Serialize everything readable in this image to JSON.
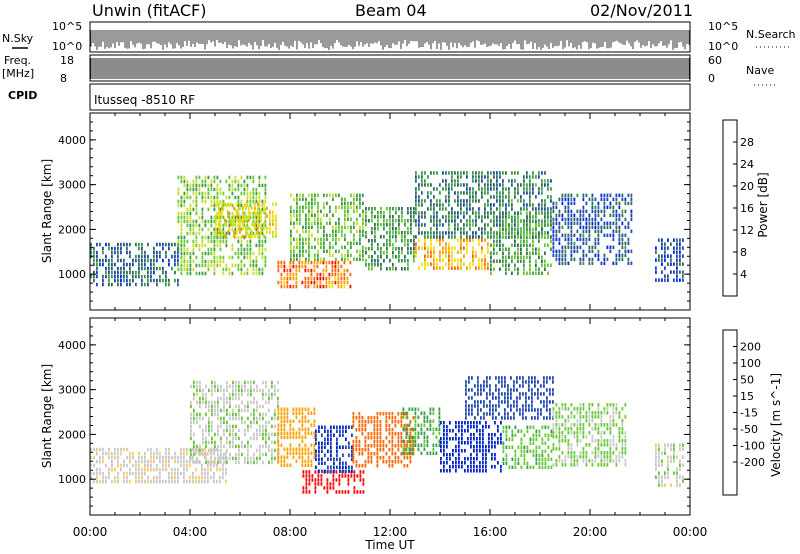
{
  "header": {
    "site": "Unwin (fitACF)",
    "beam": "Beam 04",
    "date": "02/Nov/2011"
  },
  "status_panel": {
    "nsky_label": "N.Sky",
    "nsky_ticks": [
      "10^5",
      "10^0"
    ],
    "nsearch_label": "N.Search",
    "freq_label_1": "Freq.",
    "freq_label_2": "[MHz]",
    "freq_ticks": [
      "18",
      "8"
    ],
    "nave_label": "Nave",
    "nave_ticks": [
      "60",
      "0"
    ],
    "cpid_label": "CPID",
    "cpid_value": "Itusseq -8510 RF"
  },
  "colors": {
    "power": [
      "#0022ff",
      "#1e46b4",
      "#2d6e5a",
      "#3c9a46",
      "#64c832",
      "#c8dc28",
      "#ffdc00",
      "#ffa000",
      "#ff6400",
      "#ff0000"
    ],
    "velocity": [
      "#ff0000",
      "#ff6400",
      "#ffa000",
      "#ffc864",
      "#c8c8c8",
      "#c8c8c8",
      "#64c832",
      "#32a046",
      "#1e46b4",
      "#0022cc"
    ]
  },
  "chart_data": [
    {
      "type": "heatmap",
      "panel": "power",
      "xlabel": "",
      "ylabel": "Slant Range [km]",
      "x_unit": "hours UT",
      "xlim": [
        0,
        24
      ],
      "ylim": [
        200,
        4600
      ],
      "yticks": [
        "1000",
        "2000",
        "3000",
        "4000"
      ],
      "colorbar_label": "Power [dB]",
      "colorbar_ticks": [
        "4",
        "8",
        "12",
        "16",
        "20",
        "24",
        "28"
      ],
      "colorbar_range": [
        0,
        32
      ],
      "bands": [
        {
          "t0": 0.0,
          "t1": 3.5,
          "r0": 800,
          "r1": 1700,
          "level": 7
        },
        {
          "t0": 3.5,
          "t1": 7.0,
          "r0": 1000,
          "r1": 3200,
          "level": 15
        },
        {
          "t0": 5.0,
          "t1": 7.5,
          "r0": 1800,
          "r1": 2600,
          "level": 20
        },
        {
          "t0": 7.5,
          "t1": 10.5,
          "r0": 700,
          "r1": 1300,
          "level": 26
        },
        {
          "t0": 8.0,
          "t1": 11.0,
          "r0": 1300,
          "r1": 2800,
          "level": 14
        },
        {
          "t0": 11.0,
          "t1": 13.0,
          "r0": 1100,
          "r1": 2500,
          "level": 11
        },
        {
          "t0": 13.0,
          "t1": 16.0,
          "r0": 1100,
          "r1": 1800,
          "level": 23
        },
        {
          "t0": 13.0,
          "t1": 18.5,
          "r0": 1800,
          "r1": 3300,
          "level": 9
        },
        {
          "t0": 16.0,
          "t1": 18.5,
          "r0": 1000,
          "r1": 2400,
          "level": 12
        },
        {
          "t0": 18.5,
          "t1": 21.7,
          "r0": 1200,
          "r1": 2800,
          "level": 6
        },
        {
          "t0": 22.6,
          "t1": 23.8,
          "r0": 900,
          "r1": 1800,
          "level": 5
        }
      ]
    },
    {
      "type": "heatmap",
      "panel": "velocity",
      "xlabel": "Time UT",
      "ylabel": "Slant Range [km]",
      "x_unit": "hours UT",
      "xlim": [
        0,
        24
      ],
      "ylim": [
        200,
        4600
      ],
      "xticks": [
        "00:00",
        "04:00",
        "08:00",
        "12:00",
        "16:00",
        "20:00",
        "00:00"
      ],
      "yticks": [
        "1000",
        "2000",
        "3000",
        "4000"
      ],
      "colorbar_label": "Velocity [m s^-1]",
      "colorbar_ticks": [
        "200",
        "100",
        "50",
        "15",
        "-15",
        "-50",
        "-100",
        "-200"
      ],
      "bands": [
        {
          "t0": 0.0,
          "t1": 5.5,
          "r0": 900,
          "r1": 1700,
          "level": -5
        },
        {
          "t0": 4.0,
          "t1": 7.5,
          "r0": 1400,
          "r1": 3200,
          "level": 5
        },
        {
          "t0": 7.5,
          "t1": 9.0,
          "r0": 1300,
          "r1": 2600,
          "level": -80
        },
        {
          "t0": 8.5,
          "t1": 11.0,
          "r0": 700,
          "r1": 1200,
          "level": -220
        },
        {
          "t0": 9.0,
          "t1": 10.5,
          "r0": 1200,
          "r1": 2200,
          "level": 200
        },
        {
          "t0": 10.5,
          "t1": 13.0,
          "r0": 1300,
          "r1": 2500,
          "level": -150
        },
        {
          "t0": 12.5,
          "t1": 14.0,
          "r0": 1600,
          "r1": 2600,
          "level": 60
        },
        {
          "t0": 14.0,
          "t1": 16.5,
          "r0": 1200,
          "r1": 2300,
          "level": 220
        },
        {
          "t0": 15.0,
          "t1": 18.5,
          "r0": 2400,
          "r1": 3300,
          "level": 150
        },
        {
          "t0": 16.5,
          "t1": 18.5,
          "r0": 1300,
          "r1": 2200,
          "level": 40
        },
        {
          "t0": 18.5,
          "t1": 21.5,
          "r0": 1300,
          "r1": 2700,
          "level": 20
        },
        {
          "t0": 22.6,
          "t1": 23.8,
          "r0": 900,
          "r1": 1800,
          "level": 0
        }
      ]
    }
  ]
}
